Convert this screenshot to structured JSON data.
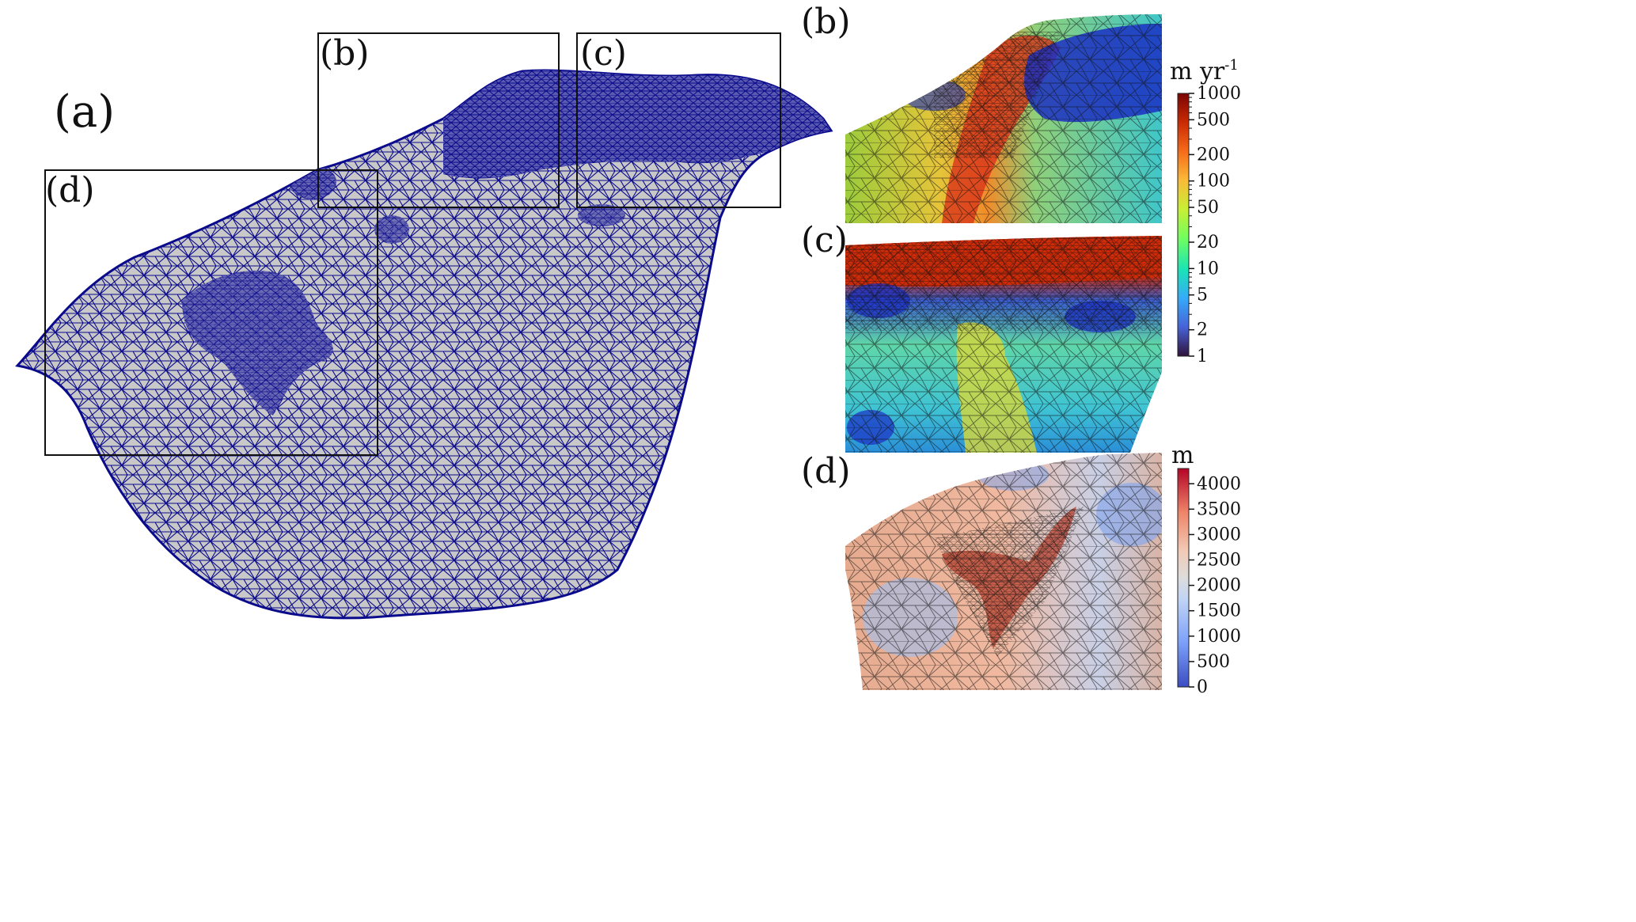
{
  "panels": {
    "a": {
      "label": "(a)"
    },
    "b": {
      "label": "(b)"
    },
    "c": {
      "label": "(c)"
    },
    "d": {
      "label": "(d)"
    }
  },
  "insets": {
    "b": {
      "label": "(b)"
    },
    "c": {
      "label": "(c)"
    },
    "d": {
      "label": "(d)"
    }
  },
  "colorbar_velocity": {
    "unit": "m yr",
    "unit_exponent": "-1",
    "colormap": "turbo",
    "ticks": [
      "1000",
      "500",
      "200",
      "100",
      "50",
      "20",
      "10",
      "5",
      "2",
      "1"
    ],
    "tick_values": [
      1000,
      500,
      200,
      100,
      50,
      20,
      10,
      5,
      2,
      1
    ],
    "range": [
      1,
      1000
    ],
    "scale": "log",
    "colors": [
      "#30123b",
      "#4662d7",
      "#36aaf9",
      "#1ae4b6",
      "#72fe5e",
      "#c8ef34",
      "#faba39",
      "#f66b19",
      "#ca2a04",
      "#7a0403"
    ]
  },
  "colorbar_thickness": {
    "unit": "m",
    "colormap": "coolwarm",
    "ticks": [
      "4000",
      "3500",
      "3000",
      "2500",
      "2000",
      "1500",
      "1000",
      "500",
      "0"
    ],
    "tick_values": [
      4000,
      3500,
      3000,
      2500,
      2000,
      1500,
      1000,
      500,
      0
    ],
    "range": [
      0,
      4300
    ],
    "scale": "linear",
    "colors": [
      "#3b4cc0",
      "#7b9ff9",
      "#c0d4f5",
      "#dddcdc",
      "#f2cbb7",
      "#ee8468",
      "#b40426"
    ]
  },
  "mesh": {
    "fill": "#c8c8c8",
    "edge": "#0a0a8c"
  }
}
